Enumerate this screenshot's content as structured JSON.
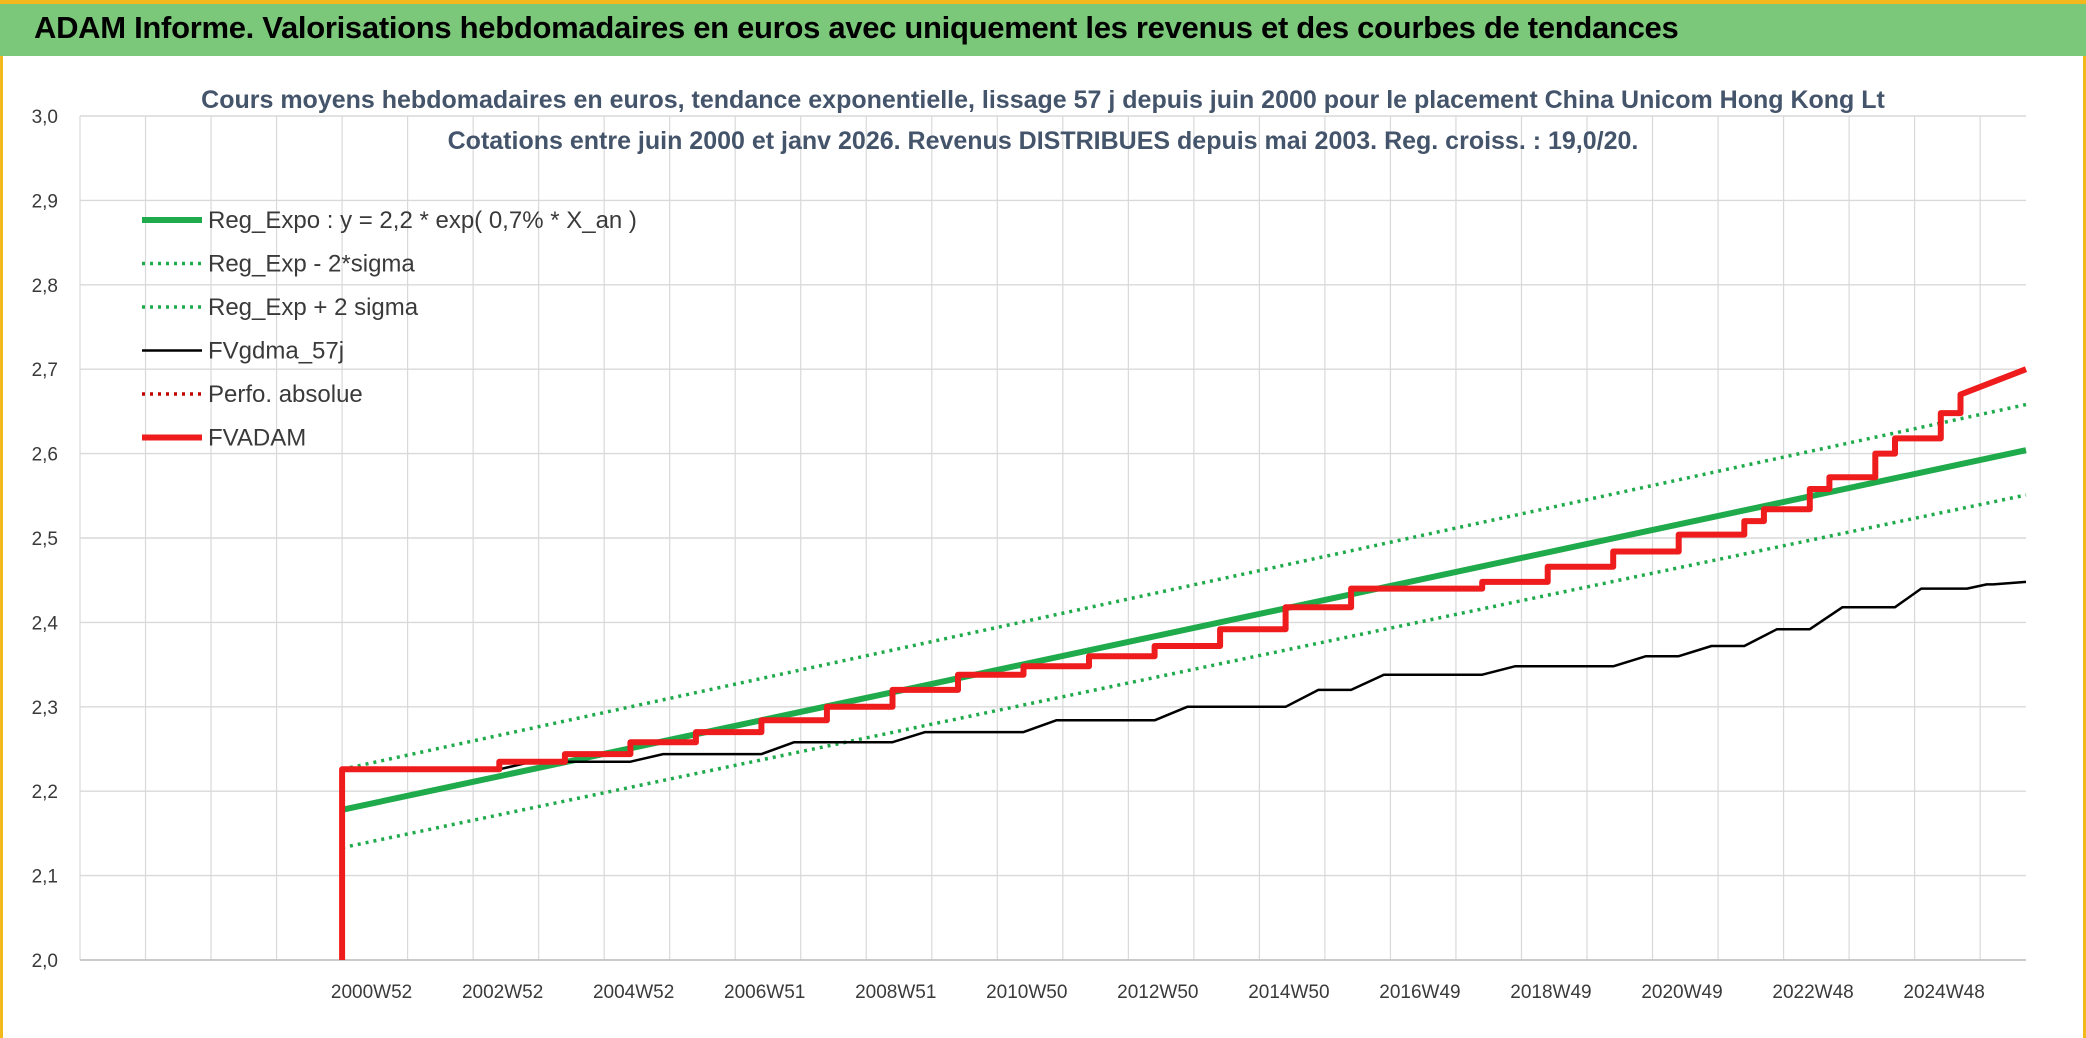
{
  "header": {
    "title": "ADAM Informe. Valorisations hebdomadaires en euros avec uniquement les revenus et des courbes de tendances"
  },
  "colors": {
    "banner": "#7bc87a",
    "accent": "#f2b81c",
    "trend": "#1faa4b",
    "fvgdma": "#000000",
    "fvadam": "#ee1c1c",
    "grid": "#d9d9d9"
  },
  "chart_data": {
    "type": "line",
    "title": [
      "Cours moyens hebdomadaires en euros, tendance exponentielle, lissage 57 j depuis juin 2000 pour le placement China Unicom Hong Kong Lt",
      "Cotations entre juin 2000 et janv 2026. Revenus DISTRIBUES depuis mai 2003. Reg. croiss. : 19,0/20."
    ],
    "x_tick_labels": [
      "2000W52",
      "2002W52",
      "2004W52",
      "2006W51",
      "2008W51",
      "2010W50",
      "2012W50",
      "2014W50",
      "2016W49",
      "2018W49",
      "2020W49",
      "2022W48",
      "2024W48"
    ],
    "y_tick_labels": [
      "2,0",
      "2,1",
      "2,2",
      "2,3",
      "2,4",
      "2,5",
      "2,6",
      "2,7",
      "2,8",
      "2,9",
      "3,0"
    ],
    "xlim": [
      1996.5,
      2026.2
    ],
    "ylim": [
      2.0,
      3.0
    ],
    "grid": true,
    "legend_position": "top-left",
    "series": [
      {
        "name": "Reg_Expo : y = 2,2 * exp( 0,7% *  X_an )",
        "style": "solid-thick",
        "color": "#1faa4b",
        "x": [
          2000.5,
          2026.2
        ],
        "y": [
          2.178,
          2.604
        ]
      },
      {
        "name": "Reg_Exp - 2*sigma",
        "style": "dotted",
        "color": "#1faa4b",
        "x": [
          2000.5,
          2026.2
        ],
        "y": [
          2.133,
          2.551
        ]
      },
      {
        "name": "Reg_Exp + 2 sigma",
        "style": "dotted",
        "color": "#1faa4b",
        "x": [
          2000.5,
          2026.2
        ],
        "y": [
          2.226,
          2.658
        ]
      },
      {
        "name": "FVgdma_57j",
        "style": "solid",
        "color": "#000000",
        "x": [
          2000.5,
          2002.9,
          2003.4,
          2003.5,
          2004.9,
          2005.4,
          2005.5,
          2006.9,
          2007.4,
          2007.5,
          2008.9,
          2009.4,
          2009.5,
          2010.9,
          2011.4,
          2011.5,
          2012.9,
          2013.4,
          2013.5,
          2014.9,
          2015.4,
          2015.5,
          2015.9,
          2016.4,
          2016.5,
          2017.9,
          2018.4,
          2018.5,
          2019.9,
          2020.4,
          2020.5,
          2020.9,
          2021.4,
          2021.5,
          2021.9,
          2022.4,
          2022.5,
          2022.9,
          2023.4,
          2023.5,
          2024.2,
          2024.6,
          2024.7,
          2025.3,
          2025.6,
          2025.7,
          2026.2
        ],
        "y": [
          2.226,
          2.226,
          2.235,
          2.235,
          2.235,
          2.244,
          2.244,
          2.244,
          2.258,
          2.258,
          2.258,
          2.27,
          2.27,
          2.27,
          2.284,
          2.284,
          2.284,
          2.3,
          2.3,
          2.3,
          2.32,
          2.32,
          2.32,
          2.338,
          2.338,
          2.338,
          2.348,
          2.348,
          2.348,
          2.36,
          2.36,
          2.36,
          2.372,
          2.372,
          2.372,
          2.392,
          2.392,
          2.392,
          2.418,
          2.418,
          2.418,
          2.44,
          2.44,
          2.44,
          2.445,
          2.445,
          2.448
        ]
      },
      {
        "name": "Perfo. absolue",
        "style": "dotted",
        "color": "#c00000",
        "x": [],
        "y": []
      },
      {
        "name": "FVADAM",
        "style": "solid-thick",
        "color": "#ee1c1c",
        "x": [
          2000.5,
          2000.5,
          2002.9,
          2002.9,
          2003.9,
          2003.9,
          2004.9,
          2004.9,
          2005.9,
          2005.9,
          2006.9,
          2006.9,
          2007.9,
          2007.9,
          2008.9,
          2008.9,
          2009.9,
          2009.9,
          2010.9,
          2010.9,
          2011.9,
          2011.9,
          2012.9,
          2012.9,
          2013.9,
          2013.9,
          2014.9,
          2014.9,
          2015.9,
          2015.9,
          2016.9,
          2016.9,
          2017.9,
          2017.9,
          2018.9,
          2018.9,
          2019.9,
          2019.9,
          2020.9,
          2020.9,
          2021.9,
          2021.9,
          2022.2,
          2022.2,
          2022.9,
          2022.9,
          2023.2,
          2023.2,
          2023.9,
          2023.9,
          2024.2,
          2024.2,
          2024.9,
          2024.9,
          2025.2,
          2025.2,
          2026.2
        ],
        "y": [
          2.0,
          2.226,
          2.226,
          2.235,
          2.235,
          2.244,
          2.244,
          2.258,
          2.258,
          2.27,
          2.27,
          2.284,
          2.284,
          2.3,
          2.3,
          2.32,
          2.32,
          2.338,
          2.338,
          2.348,
          2.348,
          2.36,
          2.36,
          2.372,
          2.372,
          2.392,
          2.392,
          2.418,
          2.418,
          2.44,
          2.44,
          2.44,
          2.44,
          2.448,
          2.448,
          2.466,
          2.466,
          2.484,
          2.484,
          2.504,
          2.504,
          2.52,
          2.52,
          2.534,
          2.534,
          2.558,
          2.558,
          2.572,
          2.572,
          2.6,
          2.6,
          2.618,
          2.618,
          2.648,
          2.648,
          2.67,
          2.7
        ]
      }
    ]
  }
}
